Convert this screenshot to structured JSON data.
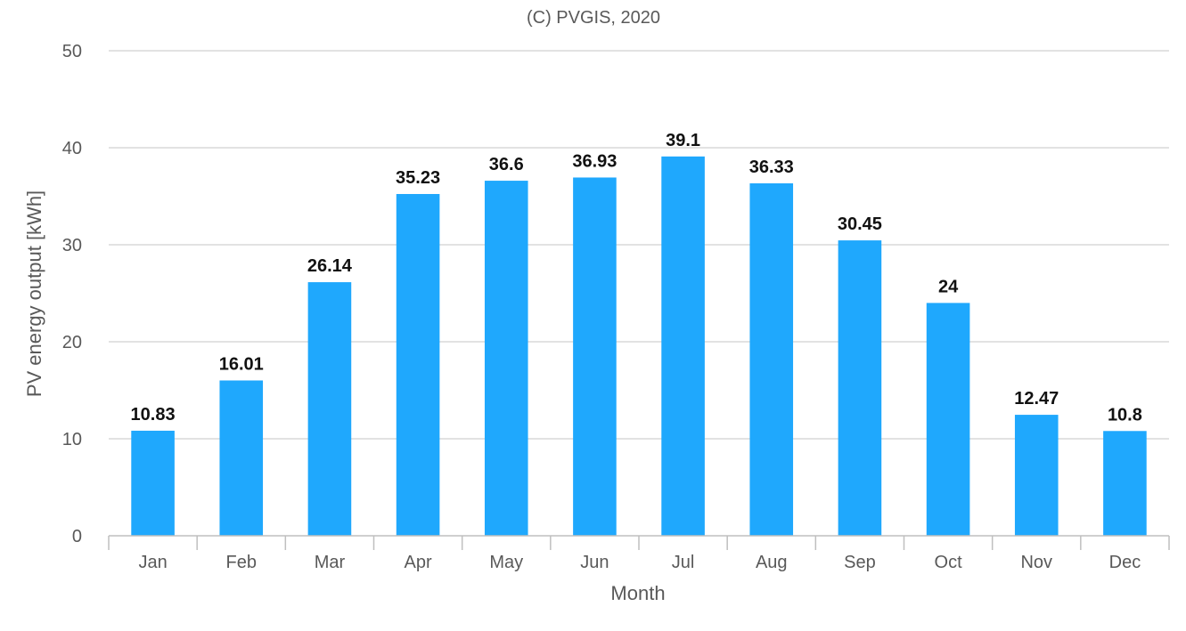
{
  "chart_data": {
    "type": "bar",
    "title": "(C) PVGIS, 2020",
    "xlabel": "Month",
    "ylabel": "PV energy output [kWh]",
    "ylim": [
      0,
      50
    ],
    "yticks": [
      0,
      10,
      20,
      30,
      40,
      50
    ],
    "grid": true,
    "categories": [
      "Jan",
      "Feb",
      "Mar",
      "Apr",
      "May",
      "Jun",
      "Jul",
      "Aug",
      "Sep",
      "Oct",
      "Nov",
      "Dec"
    ],
    "values": [
      10.83,
      16.01,
      26.14,
      35.23,
      36.6,
      36.93,
      39.1,
      36.33,
      30.45,
      24,
      12.47,
      10.8
    ],
    "data_labels": [
      "10.83",
      "16.01",
      "26.14",
      "35.23",
      "36.6",
      "36.93",
      "39.1",
      "36.33",
      "30.45",
      "24",
      "12.47",
      "10.8"
    ],
    "bar_color": "#1fa8fd"
  }
}
